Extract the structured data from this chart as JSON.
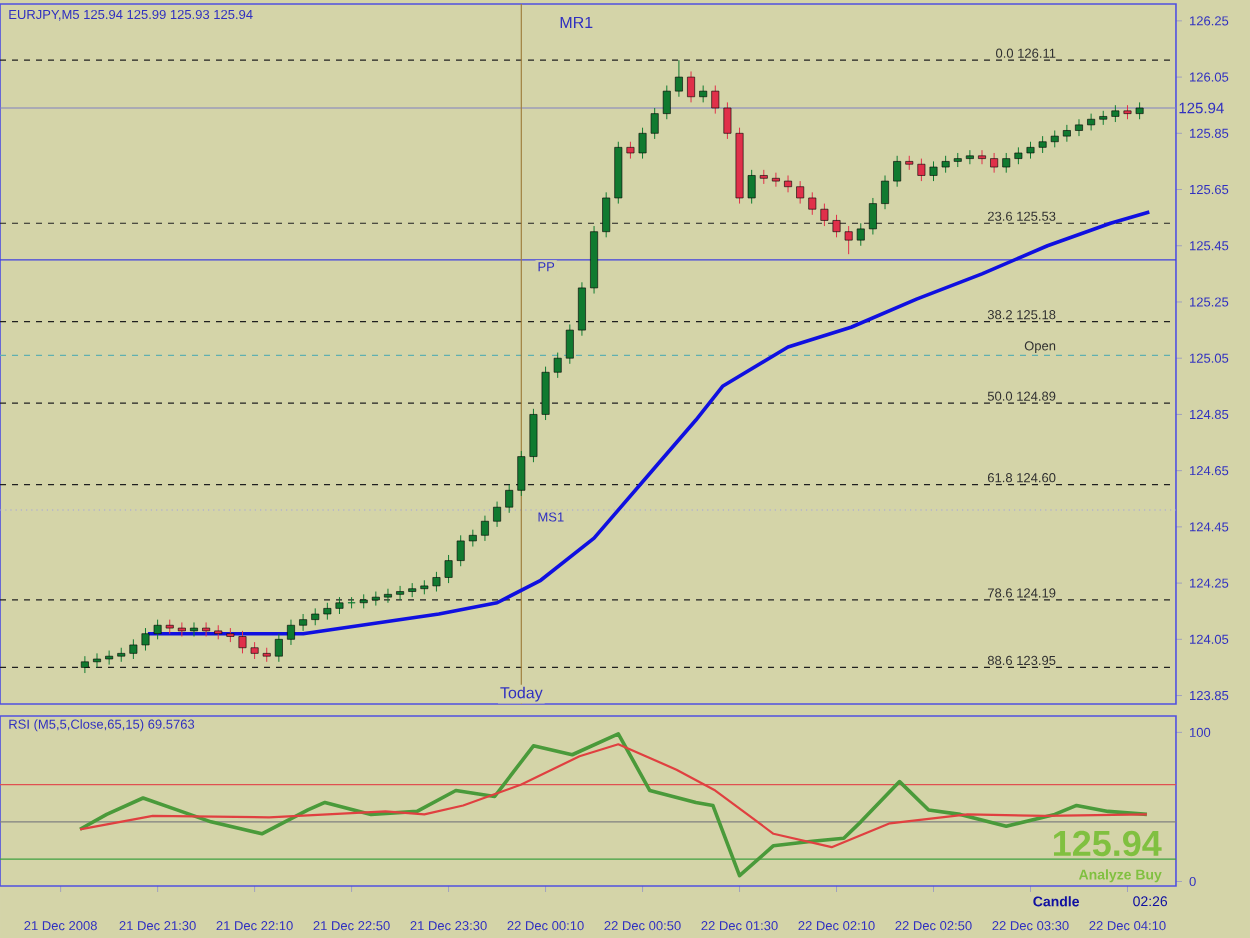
{
  "chart_data": [
    {
      "type": "candlestick",
      "title": "EURJPY,M5 125.94 125.99 125.93 125.94",
      "x": [
        "2008-12-21T21:00",
        "2008-12-21T21:05",
        "2008-12-21T21:10",
        "2008-12-21T21:15",
        "2008-12-21T21:20",
        "2008-12-21T21:25",
        "2008-12-21T21:30",
        "2008-12-21T21:35",
        "2008-12-21T21:40",
        "2008-12-21T21:45",
        "2008-12-21T21:50",
        "2008-12-21T21:55",
        "2008-12-21T22:00",
        "2008-12-21T22:05",
        "2008-12-21T22:10",
        "2008-12-21T22:15",
        "2008-12-21T22:20",
        "2008-12-21T22:25",
        "2008-12-21T22:30",
        "2008-12-21T22:35",
        "2008-12-21T22:40",
        "2008-12-21T22:45",
        "2008-12-21T22:50",
        "2008-12-21T22:55",
        "2008-12-21T23:00",
        "2008-12-21T23:05",
        "2008-12-21T23:10",
        "2008-12-21T23:15",
        "2008-12-21T23:20",
        "2008-12-21T23:25",
        "2008-12-21T23:30",
        "2008-12-21T23:35",
        "2008-12-21T23:40",
        "2008-12-21T23:45",
        "2008-12-21T23:50",
        "2008-12-21T23:55",
        "2008-12-22T00:00",
        "2008-12-22T00:05",
        "2008-12-22T00:10",
        "2008-12-22T00:15",
        "2008-12-22T00:20",
        "2008-12-22T00:25",
        "2008-12-22T00:30",
        "2008-12-22T00:35",
        "2008-12-22T00:40",
        "2008-12-22T00:45",
        "2008-12-22T00:50",
        "2008-12-22T00:55",
        "2008-12-22T01:00",
        "2008-12-22T01:05",
        "2008-12-22T01:10",
        "2008-12-22T01:15",
        "2008-12-22T01:20",
        "2008-12-22T01:25",
        "2008-12-22T01:30",
        "2008-12-22T01:35",
        "2008-12-22T01:40",
        "2008-12-22T01:45",
        "2008-12-22T01:50",
        "2008-12-22T01:55",
        "2008-12-22T02:00",
        "2008-12-22T02:05",
        "2008-12-22T02:10",
        "2008-12-22T02:15",
        "2008-12-22T02:20",
        "2008-12-22T02:25",
        "2008-12-22T02:30",
        "2008-12-22T02:35",
        "2008-12-22T02:40",
        "2008-12-22T02:45",
        "2008-12-22T02:50",
        "2008-12-22T02:55",
        "2008-12-22T03:00",
        "2008-12-22T03:05",
        "2008-12-22T03:10",
        "2008-12-22T03:15",
        "2008-12-22T03:20",
        "2008-12-22T03:25",
        "2008-12-22T03:30",
        "2008-12-22T03:35",
        "2008-12-22T03:40",
        "2008-12-22T03:45",
        "2008-12-22T03:50",
        "2008-12-22T03:55",
        "2008-12-22T04:00",
        "2008-12-22T04:05",
        "2008-12-22T04:10",
        "2008-12-22T04:15"
      ],
      "ohlc": [
        [
          123.95,
          123.99,
          123.93,
          123.97
        ],
        [
          123.97,
          124.0,
          123.95,
          123.98
        ],
        [
          123.98,
          124.01,
          123.96,
          123.99
        ],
        [
          123.99,
          124.02,
          123.97,
          124.0
        ],
        [
          124.0,
          124.05,
          123.98,
          124.03
        ],
        [
          124.03,
          124.09,
          124.01,
          124.07
        ],
        [
          124.07,
          124.12,
          124.05,
          124.1
        ],
        [
          124.1,
          124.12,
          124.07,
          124.09
        ],
        [
          124.09,
          124.11,
          124.06,
          124.08
        ],
        [
          124.08,
          124.11,
          124.06,
          124.09
        ],
        [
          124.09,
          124.11,
          124.06,
          124.08
        ],
        [
          124.08,
          124.1,
          124.05,
          124.07
        ],
        [
          124.07,
          124.09,
          124.04,
          124.06
        ],
        [
          124.06,
          124.08,
          124.0,
          124.02
        ],
        [
          124.02,
          124.04,
          123.98,
          124.0
        ],
        [
          124.0,
          124.02,
          123.97,
          123.99
        ],
        [
          123.99,
          124.07,
          123.97,
          124.05
        ],
        [
          124.05,
          124.12,
          124.03,
          124.1
        ],
        [
          124.1,
          124.14,
          124.08,
          124.12
        ],
        [
          124.12,
          124.16,
          124.1,
          124.14
        ],
        [
          124.14,
          124.18,
          124.12,
          124.16
        ],
        [
          124.16,
          124.2,
          124.14,
          124.18
        ],
        [
          124.18,
          124.2,
          124.16,
          124.18
        ],
        [
          124.18,
          124.21,
          124.16,
          124.19
        ],
        [
          124.19,
          124.22,
          124.17,
          124.2
        ],
        [
          124.2,
          124.23,
          124.18,
          124.21
        ],
        [
          124.21,
          124.24,
          124.19,
          124.22
        ],
        [
          124.22,
          124.25,
          124.2,
          124.23
        ],
        [
          124.23,
          124.26,
          124.21,
          124.24
        ],
        [
          124.24,
          124.29,
          124.22,
          124.27
        ],
        [
          124.27,
          124.35,
          124.25,
          124.33
        ],
        [
          124.33,
          124.42,
          124.31,
          124.4
        ],
        [
          124.4,
          124.44,
          124.38,
          124.42
        ],
        [
          124.42,
          124.49,
          124.4,
          124.47
        ],
        [
          124.47,
          124.54,
          124.45,
          124.52
        ],
        [
          124.52,
          124.6,
          124.5,
          124.58
        ],
        [
          124.58,
          124.72,
          124.56,
          124.7
        ],
        [
          124.7,
          124.87,
          124.68,
          124.85
        ],
        [
          124.85,
          125.02,
          124.83,
          125.0
        ],
        [
          125.0,
          125.07,
          124.98,
          125.05
        ],
        [
          125.05,
          125.17,
          125.03,
          125.15
        ],
        [
          125.15,
          125.32,
          125.13,
          125.3
        ],
        [
          125.3,
          125.52,
          125.28,
          125.5
        ],
        [
          125.5,
          125.64,
          125.48,
          125.62
        ],
        [
          125.62,
          125.82,
          125.6,
          125.8
        ],
        [
          125.8,
          125.82,
          125.76,
          125.78
        ],
        [
          125.78,
          125.87,
          125.76,
          125.85
        ],
        [
          125.85,
          125.94,
          125.83,
          125.92
        ],
        [
          125.92,
          126.02,
          125.9,
          126.0
        ],
        [
          126.0,
          126.11,
          125.98,
          126.05
        ],
        [
          126.05,
          126.07,
          125.96,
          125.98
        ],
        [
          125.98,
          126.02,
          125.96,
          126.0
        ],
        [
          126.0,
          126.02,
          125.92,
          125.94
        ],
        [
          125.94,
          125.96,
          125.83,
          125.85
        ],
        [
          125.85,
          125.87,
          125.6,
          125.62
        ],
        [
          125.62,
          125.72,
          125.6,
          125.7
        ],
        [
          125.7,
          125.72,
          125.67,
          125.69
        ],
        [
          125.69,
          125.71,
          125.66,
          125.68
        ],
        [
          125.68,
          125.7,
          125.64,
          125.66
        ],
        [
          125.66,
          125.68,
          125.6,
          125.62
        ],
        [
          125.62,
          125.64,
          125.56,
          125.58
        ],
        [
          125.58,
          125.6,
          125.52,
          125.54
        ],
        [
          125.54,
          125.56,
          125.48,
          125.5
        ],
        [
          125.5,
          125.52,
          125.42,
          125.47
        ],
        [
          125.47,
          125.53,
          125.45,
          125.51
        ],
        [
          125.51,
          125.62,
          125.49,
          125.6
        ],
        [
          125.6,
          125.7,
          125.58,
          125.68
        ],
        [
          125.68,
          125.77,
          125.66,
          125.75
        ],
        [
          125.75,
          125.77,
          125.72,
          125.74
        ],
        [
          125.74,
          125.76,
          125.68,
          125.7
        ],
        [
          125.7,
          125.75,
          125.68,
          125.73
        ],
        [
          125.73,
          125.77,
          125.71,
          125.75
        ],
        [
          125.75,
          125.78,
          125.73,
          125.76
        ],
        [
          125.76,
          125.79,
          125.74,
          125.77
        ],
        [
          125.77,
          125.79,
          125.74,
          125.76
        ],
        [
          125.76,
          125.78,
          125.71,
          125.73
        ],
        [
          125.73,
          125.78,
          125.71,
          125.76
        ],
        [
          125.76,
          125.8,
          125.74,
          125.78
        ],
        [
          125.78,
          125.82,
          125.76,
          125.8
        ],
        [
          125.8,
          125.84,
          125.78,
          125.82
        ],
        [
          125.82,
          125.86,
          125.8,
          125.84
        ],
        [
          125.84,
          125.88,
          125.82,
          125.86
        ],
        [
          125.86,
          125.9,
          125.84,
          125.88
        ],
        [
          125.88,
          125.92,
          125.86,
          125.9
        ],
        [
          125.9,
          125.93,
          125.88,
          125.91
        ],
        [
          125.91,
          125.95,
          125.89,
          125.93
        ],
        [
          125.93,
          125.95,
          125.9,
          125.92
        ],
        [
          125.92,
          125.96,
          125.9,
          125.94
        ]
      ],
      "series": [
        {
          "type": "line",
          "color": "#1010e0",
          "x": [
            "2008-12-21T21:26",
            "2008-12-21T22:30",
            "2008-12-21T23:26",
            "2008-12-21T23:50",
            "2008-12-22T00:08",
            "2008-12-22T00:30",
            "2008-12-22T00:56",
            "2008-12-22T01:12",
            "2008-12-22T01:23",
            "2008-12-22T01:50",
            "2008-12-22T02:16",
            "2008-12-22T02:43",
            "2008-12-22T03:10",
            "2008-12-22T03:37",
            "2008-12-22T04:03",
            "2008-12-22T04:19"
          ],
          "values": [
            124.07,
            124.07,
            124.14,
            124.18,
            124.26,
            124.41,
            124.67,
            124.83,
            124.95,
            125.09,
            125.16,
            125.26,
            125.35,
            125.45,
            125.53,
            125.57
          ]
        }
      ],
      "xlim": [
        "2008-12-21T20:25",
        "2008-12-22T04:30"
      ],
      "ylim": [
        123.82,
        126.31
      ],
      "yticks": [
        123.85,
        124.05,
        124.25,
        124.45,
        124.65,
        124.85,
        125.05,
        125.25,
        125.45,
        125.65,
        125.85,
        126.05,
        126.25
      ],
      "tick_labels": "y",
      "ref_lines": [
        {
          "axis": "y",
          "value": 126.11,
          "label": "0.0 126.11",
          "color": "#202020",
          "line_style": "dashed"
        },
        {
          "axis": "y",
          "value": 125.53,
          "label": "23.6 125.53",
          "color": "#202020",
          "line_style": "dashed"
        },
        {
          "axis": "y",
          "value": 125.18,
          "label": "38.2 125.18",
          "color": "#202020",
          "line_style": "dashed"
        },
        {
          "axis": "y",
          "value": 124.89,
          "label": "50.0 124.89",
          "color": "#202020",
          "line_style": "dashed"
        },
        {
          "axis": "y",
          "value": 124.6,
          "label": "61.8 124.60",
          "color": "#202020",
          "line_style": "dashed"
        },
        {
          "axis": "y",
          "value": 124.19,
          "label": "78.6 124.19",
          "color": "#202020",
          "line_style": "dashed"
        },
        {
          "axis": "y",
          "value": 123.95,
          "label": "88.6 123.95",
          "color": "#202020",
          "line_style": "dashed"
        },
        {
          "axis": "y",
          "value": 125.06,
          "label": "Open",
          "color": "#60b0b0",
          "line_style": "dashed"
        },
        {
          "axis": "y",
          "value": 125.4,
          "label": "PP",
          "color": "#4040e0",
          "line_style": "solid"
        },
        {
          "axis": "y",
          "value": 124.51,
          "label": "MS1",
          "color": "#a0a0e0",
          "line_style": "dotted"
        },
        {
          "axis": "y",
          "value": 125.94,
          "color": "#8080c0",
          "line_style": "solid"
        },
        {
          "axis": "x",
          "value": "2008-12-22T00:00",
          "label": "Today",
          "color": "#a08040",
          "line_style": "solid"
        }
      ],
      "annotations": [
        "MR1",
        {
          "text": "125.94",
          "x": "2008-12-22T04:30",
          "y": 125.94
        }
      ]
    },
    {
      "type": "line",
      "title": "RSI (M5,5,Close,65,15) 69.5763",
      "series": [
        {
          "color": "#4a9a3a",
          "x": [
            "2008-12-21T20:58",
            "2008-12-21T21:09",
            "2008-12-21T21:24",
            "2008-12-21T21:38",
            "2008-12-21T21:52",
            "2008-12-21T22:13",
            "2008-12-21T22:32",
            "2008-12-21T22:39",
            "2008-12-21T22:58",
            "2008-12-21T23:17",
            "2008-12-21T23:33",
            "2008-12-21T23:49",
            "2008-12-22T00:05",
            "2008-12-22T00:21",
            "2008-12-22T00:40",
            "2008-12-22T00:53",
            "2008-12-22T01:12",
            "2008-12-22T01:19",
            "2008-12-22T01:30",
            "2008-12-22T01:44",
            "2008-12-22T02:00",
            "2008-12-22T02:13",
            "2008-12-22T02:20",
            "2008-12-22T02:36",
            "2008-12-22T02:48",
            "2008-12-22T03:01",
            "2008-12-22T03:20",
            "2008-12-22T03:40",
            "2008-12-22T03:49",
            "2008-12-22T04:02",
            "2008-12-22T04:18"
          ],
          "values": [
            35,
            45,
            56,
            48,
            40,
            32,
            48,
            53,
            45,
            47,
            61,
            57,
            91,
            85,
            99,
            61,
            53,
            51,
            4,
            24,
            27,
            29,
            40,
            67,
            48,
            45,
            37,
            45,
            51,
            47,
            45
          ]
        },
        {
          "color": "#e04040",
          "x": [
            "2008-12-21T20:58",
            "2008-12-21T21:28",
            "2008-12-21T22:16",
            "2008-12-21T23:04",
            "2008-12-21T23:20",
            "2008-12-21T23:36",
            "2008-12-22T00:00",
            "2008-12-22T00:24",
            "2008-12-22T00:40",
            "2008-12-22T01:04",
            "2008-12-22T01:20",
            "2008-12-22T01:44",
            "2008-12-22T02:08",
            "2008-12-22T02:32",
            "2008-12-22T03:04",
            "2008-12-22T03:36",
            "2008-12-22T04:18"
          ],
          "values": [
            35,
            44,
            43,
            47,
            45,
            51,
            65,
            84,
            92,
            75,
            61,
            32,
            23,
            39,
            45,
            44,
            45
          ]
        }
      ],
      "xlim": [
        "2008-12-21T20:25",
        "2008-12-22T04:30"
      ],
      "xticks": [
        {
          "value": "2008-12-21T20:50",
          "label": "21 Dec 2008"
        },
        {
          "value": "2008-12-21T21:30",
          "label": "21 Dec 21:30"
        },
        {
          "value": "2008-12-21T22:10",
          "label": "21 Dec 22:10"
        },
        {
          "value": "2008-12-21T22:50",
          "label": "21 Dec 22:50"
        },
        {
          "value": "2008-12-21T23:30",
          "label": "21 Dec 23:30"
        },
        {
          "value": "2008-12-22T00:10",
          "label": "22 Dec 00:10"
        },
        {
          "value": "2008-12-22T00:50",
          "label": "22 Dec 00:50"
        },
        {
          "value": "2008-12-22T01:30",
          "label": "22 Dec 01:30"
        },
        {
          "value": "2008-12-22T02:10",
          "label": "22 Dec 02:10"
        },
        {
          "value": "2008-12-22T02:50",
          "label": "22 Dec 02:50"
        },
        {
          "value": "2008-12-22T03:30",
          "label": "22 Dec 03:30"
        },
        {
          "value": "2008-12-22T04:10",
          "label": "22 Dec 04:10"
        }
      ],
      "ylim": [
        -3,
        111
      ],
      "yticks": [
        0,
        100
      ],
      "ref_lines": [
        {
          "axis": "y",
          "value": 65,
          "color": "#e05050",
          "line_style": "solid"
        },
        {
          "axis": "y",
          "value": 40,
          "color": "#808080",
          "line_style": "solid"
        },
        {
          "axis": "y",
          "value": 15,
          "color": "#40a040",
          "line_style": "solid"
        }
      ],
      "annotations": [
        "125.94",
        "Analyze Buy",
        "Candle",
        "02:26"
      ]
    }
  ]
}
